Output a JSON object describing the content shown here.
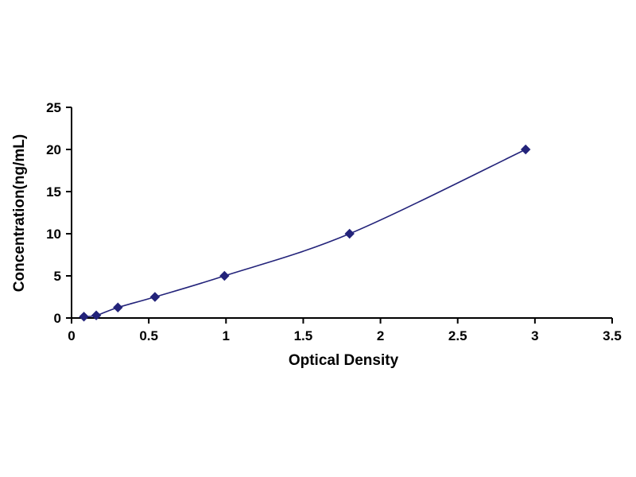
{
  "chart_data": {
    "type": "line",
    "title": "",
    "xlabel": "Optical Density",
    "ylabel": "Concentration(ng/mL)",
    "x": [
      0.08,
      0.16,
      0.3,
      0.54,
      0.99,
      1.8,
      2.94
    ],
    "y": [
      0.16,
      0.31,
      1.25,
      2.5,
      5,
      10,
      20
    ],
    "xlim": [
      0,
      3.5
    ],
    "ylim": [
      0,
      25
    ],
    "xticks": [
      0,
      0.5,
      1,
      1.5,
      2,
      2.5,
      3,
      3.5
    ],
    "yticks": [
      0,
      5,
      10,
      15,
      20,
      25
    ],
    "grid": false,
    "legend": null,
    "line_color": "#23237a",
    "marker": "diamond",
    "marker_color": "#23237a",
    "axis_color": "#000000"
  }
}
